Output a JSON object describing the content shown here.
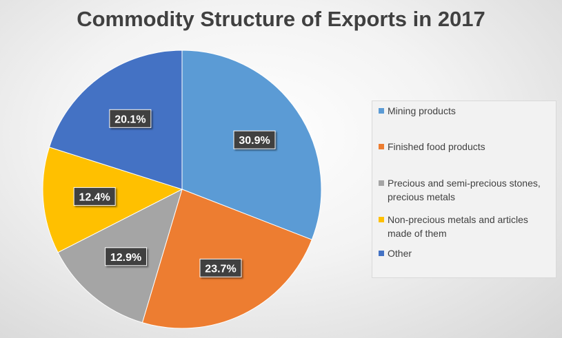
{
  "chart_data": {
    "type": "pie",
    "title": "Commodity Structure of Exports in 2017",
    "categories": [
      "Mining products",
      "Finished food products",
      "Precious and semi-precious stones, precious metals",
      "Non-precious metals and articles made of them",
      "Other"
    ],
    "legend_lines": [
      [
        "Mining products"
      ],
      [
        "Finished food products"
      ],
      [
        "Precious and semi-precious stones,",
        "precious metals"
      ],
      [
        "Non-precious metals and articles",
        "made of them"
      ],
      [
        "Other"
      ]
    ],
    "values": [
      30.9,
      23.7,
      12.9,
      12.4,
      20.1
    ],
    "data_labels": [
      "30.9%",
      "23.7%",
      "12.9%",
      "12.4%",
      "20.1%"
    ],
    "colors": [
      "#5b9bd5",
      "#ed7d31",
      "#a5a5a5",
      "#ffc000",
      "#4472c4"
    ],
    "legend_position": "right"
  }
}
